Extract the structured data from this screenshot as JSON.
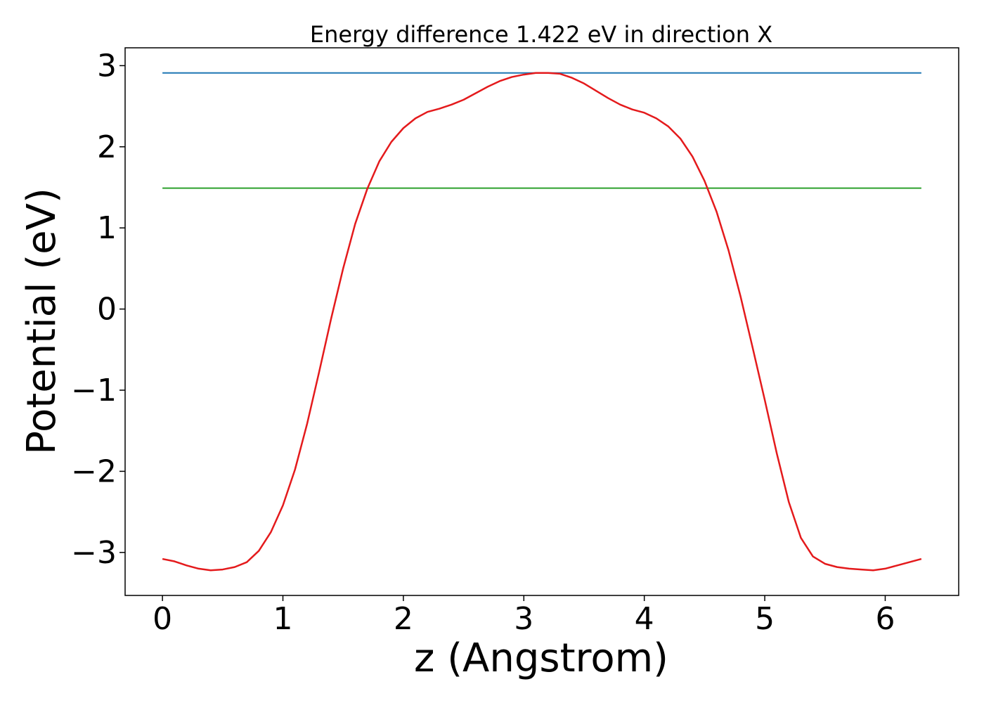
{
  "chart_data": {
    "type": "line",
    "title": "Energy difference 1.422 eV in direction X",
    "xlabel": "z (Angstrom)",
    "ylabel": "Potential (eV)",
    "xlim": [
      -0.31,
      6.61
    ],
    "ylim": [
      -3.53,
      3.22
    ],
    "xticks": [
      0,
      1,
      2,
      3,
      4,
      5,
      6
    ],
    "xtick_labels": [
      "0",
      "1",
      "2",
      "3",
      "4",
      "5",
      "6"
    ],
    "yticks": [
      -3,
      -2,
      -1,
      0,
      1,
      2,
      3
    ],
    "ytick_labels": [
      "−3",
      "−2",
      "−1",
      "0",
      "1",
      "2",
      "3"
    ],
    "grid": false,
    "legend": "none",
    "series": [
      {
        "color": "#1f77b4",
        "x": [
          0,
          6.3
        ],
        "y": [
          2.91,
          2.91
        ]
      },
      {
        "color": "#2ca02c",
        "x": [
          0,
          6.3
        ],
        "y": [
          1.49,
          1.49
        ]
      },
      {
        "color": "#e41a1c",
        "x": [
          0,
          0.1,
          0.2,
          0.3,
          0.4,
          0.5,
          0.6,
          0.7,
          0.8,
          0.9,
          1.0,
          1.1,
          1.2,
          1.3,
          1.4,
          1.5,
          1.6,
          1.7,
          1.8,
          1.9,
          2.0,
          2.1,
          2.2,
          2.3,
          2.4,
          2.5,
          2.6,
          2.7,
          2.8,
          2.9,
          3.0,
          3.1,
          3.2,
          3.3,
          3.4,
          3.5,
          3.6,
          3.7,
          3.8,
          3.9,
          4.0,
          4.1,
          4.2,
          4.3,
          4.4,
          4.5,
          4.6,
          4.7,
          4.8,
          4.9,
          5.0,
          5.1,
          5.2,
          5.3,
          5.4,
          5.5,
          5.6,
          5.7,
          5.8,
          5.9,
          6.0,
          6.1,
          6.2,
          6.3
        ],
        "y": [
          -3.08,
          -3.11,
          -3.16,
          -3.2,
          -3.22,
          -3.21,
          -3.18,
          -3.12,
          -2.98,
          -2.75,
          -2.42,
          -1.98,
          -1.42,
          -0.78,
          -0.12,
          0.5,
          1.05,
          1.48,
          1.82,
          2.06,
          2.23,
          2.35,
          2.43,
          2.47,
          2.52,
          2.58,
          2.66,
          2.74,
          2.81,
          2.86,
          2.89,
          2.91,
          2.91,
          2.9,
          2.85,
          2.78,
          2.69,
          2.6,
          2.52,
          2.46,
          2.42,
          2.35,
          2.25,
          2.1,
          1.88,
          1.58,
          1.2,
          0.72,
          0.15,
          -0.48,
          -1.12,
          -1.78,
          -2.38,
          -2.82,
          -3.05,
          -3.14,
          -3.18,
          -3.2,
          -3.21,
          -3.22,
          -3.2,
          -3.16,
          -3.12,
          -3.08
        ]
      }
    ]
  }
}
